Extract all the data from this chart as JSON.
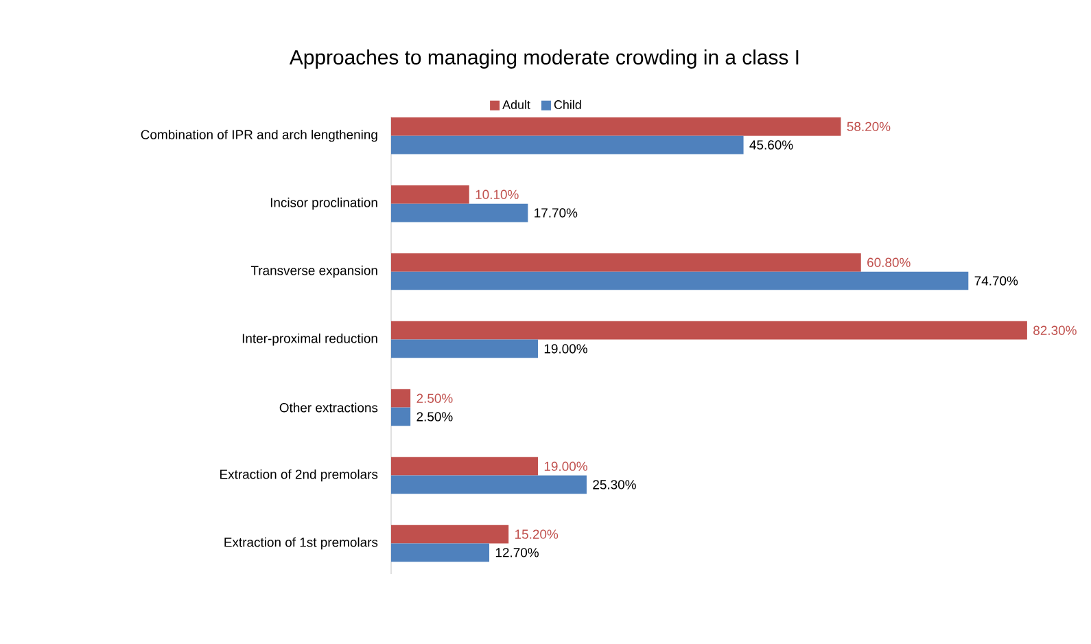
{
  "chart_data": {
    "type": "bar",
    "orientation": "horizontal",
    "title": "Approaches to managing moderate crowding in a class I",
    "categories": [
      "Combination of IPR and arch lengthening",
      "Incisor proclination",
      "Transverse expansion",
      "Inter-proximal reduction",
      "Other extractions",
      "Extraction of 2nd premolars",
      "Extraction of 1st premolars"
    ],
    "series": [
      {
        "name": "Adult",
        "color": "#c0504d",
        "values": [
          58.2,
          10.1,
          60.8,
          82.3,
          2.5,
          19.0,
          15.2
        ],
        "value_labels": [
          "58.20%",
          "10.10%",
          "60.80%",
          "82.30%",
          "2.50%",
          "19.00%",
          "15.20%"
        ]
      },
      {
        "name": "Child",
        "color": "#4f81bd",
        "values": [
          45.6,
          17.7,
          74.7,
          19.0,
          2.5,
          25.3,
          12.7
        ],
        "value_labels": [
          "45.60%",
          "17.70%",
          "74.70%",
          "19.00%",
          "2.50%",
          "25.30%",
          "12.70%"
        ]
      }
    ],
    "legend": "top"
  }
}
